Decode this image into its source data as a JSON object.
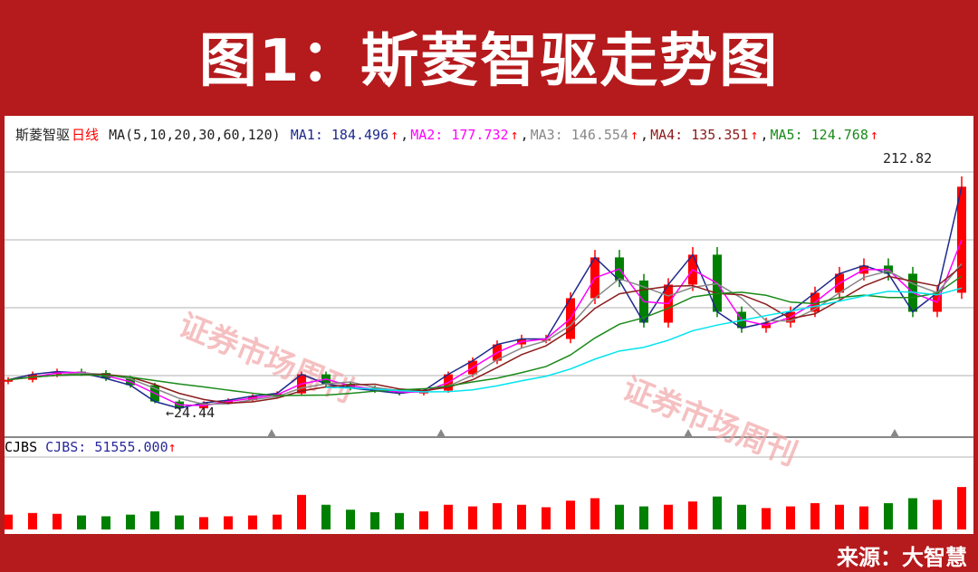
{
  "title": "图1：斯菱智驱走势图",
  "source": "来源：大智慧",
  "header": {
    "stock": "斯菱智驱",
    "period": "日线",
    "ma_params": "MA(5,10,20,30,60,120)",
    "ma_values": [
      {
        "label": "MA1: 184.496",
        "color": "#1e2a8c"
      },
      {
        "label": "MA2: 177.732",
        "color": "#ff00ff"
      },
      {
        "label": "MA3: 146.554",
        "color": "#888888"
      },
      {
        "label": "MA4: 135.351",
        "color": "#8b1c1c"
      },
      {
        "label": "MA5: 124.768",
        "color": "#1a8a1a"
      }
    ],
    "up_arrow": "↑",
    "separator": ","
  },
  "volume_header": {
    "name": "CJBS",
    "value": "CJBS: 51555.000",
    "arrow": "↑"
  },
  "watermark": "证券市场周刊",
  "chart_data": {
    "type": "candlestick",
    "grid": true,
    "annotations": [
      {
        "text": "←24.44",
        "value": 24.44,
        "label": "low"
      },
      {
        "text": "212.82",
        "value": 212.82,
        "label": "high"
      }
    ],
    "close": [
      48,
      52,
      54,
      53,
      49,
      44,
      32,
      27,
      31,
      33,
      36,
      38,
      52,
      45,
      42,
      40,
      38,
      40,
      52,
      62,
      74,
      78,
      78,
      108,
      138,
      121,
      90,
      118,
      140,
      98,
      86,
      90,
      98,
      112,
      126,
      132,
      126,
      98,
      112,
      190
    ],
    "volume": [
      18000,
      20000,
      19000,
      17000,
      16000,
      18000,
      22000,
      17000,
      15000,
      16000,
      17000,
      18000,
      42000,
      30000,
      24000,
      21000,
      20000,
      22000,
      30000,
      28000,
      32000,
      30000,
      27000,
      35000,
      38000,
      30000,
      28000,
      30000,
      34000,
      40000,
      30000,
      26000,
      28000,
      32000,
      30000,
      28000,
      32000,
      38000,
      36000,
      51555
    ],
    "colors": {
      "up": "#ff0000",
      "down": "#008000",
      "ma6": "#00e5ee"
    }
  }
}
